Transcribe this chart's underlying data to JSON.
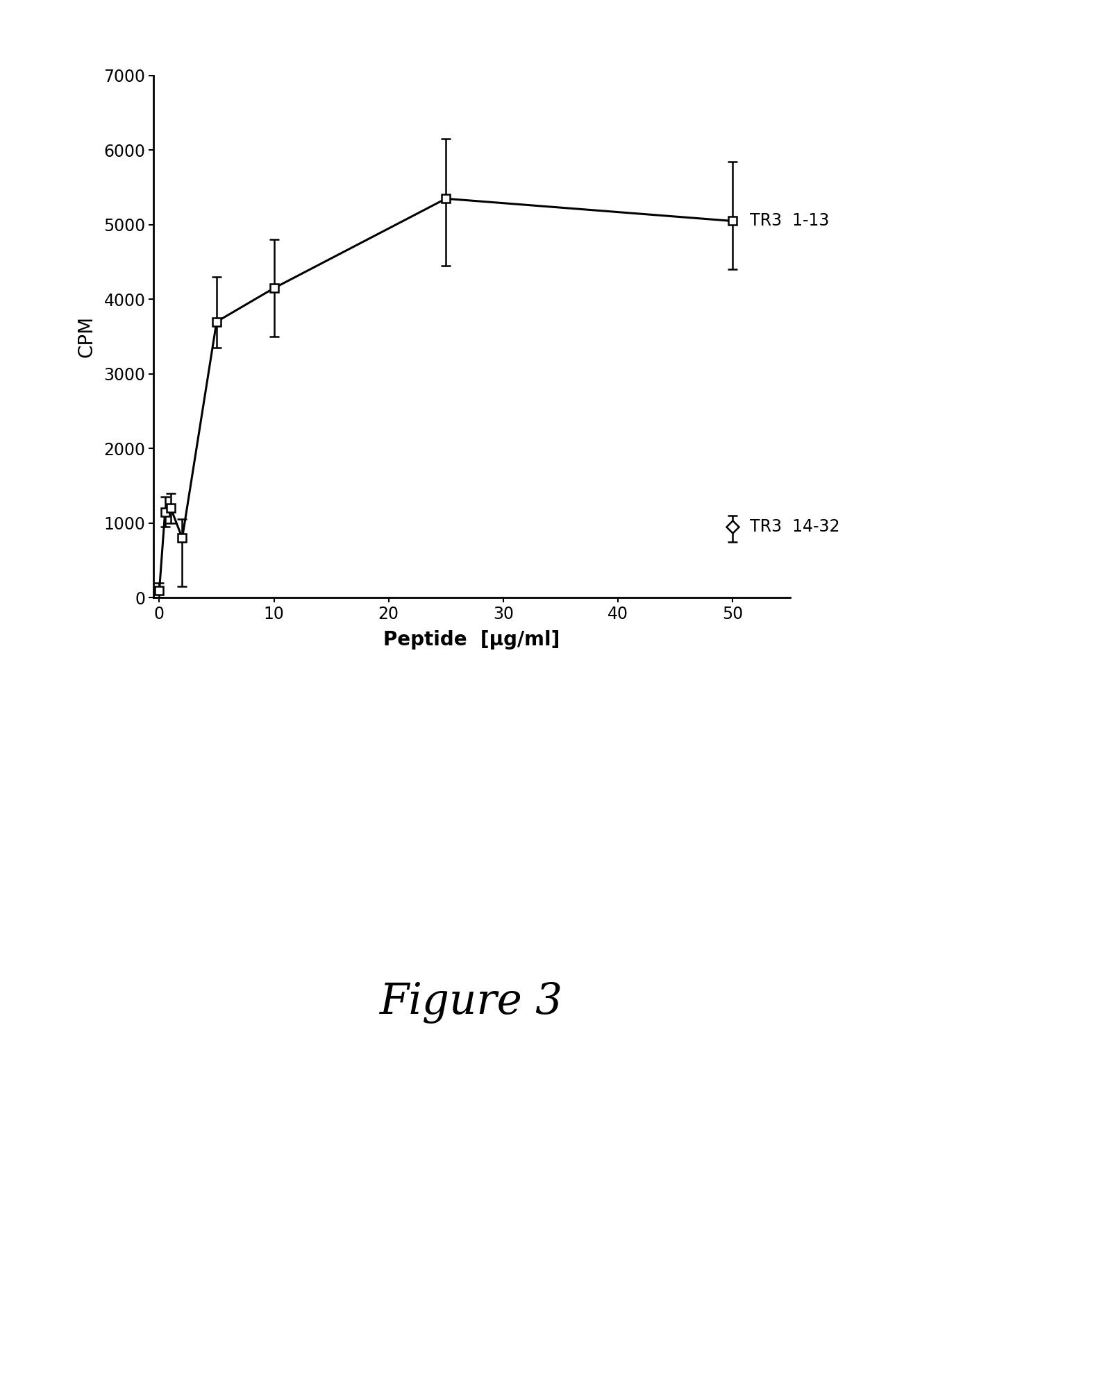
{
  "tr3_1_13_x": [
    0,
    0.5,
    1,
    2,
    5,
    10,
    25,
    50
  ],
  "tr3_1_13_y": [
    100,
    1150,
    1200,
    800,
    3700,
    4150,
    5350,
    5050
  ],
  "tr3_1_13_yerr_low": [
    100,
    200,
    200,
    650,
    350,
    650,
    900,
    650
  ],
  "tr3_1_13_yerr_high": [
    100,
    200,
    200,
    250,
    600,
    650,
    800,
    800
  ],
  "tr3_14_32_x": [
    50
  ],
  "tr3_14_32_y": [
    950
  ],
  "tr3_14_32_yerr_low": [
    200
  ],
  "tr3_14_32_yerr_high": [
    150
  ],
  "ylabel": "CPM",
  "xlabel": "Peptide  [μg/ml]",
  "ylim": [
    0,
    7000
  ],
  "xlim": [
    -0.5,
    55
  ],
  "yticks": [
    0,
    1000,
    2000,
    3000,
    4000,
    5000,
    6000,
    7000
  ],
  "xticks": [
    0,
    10,
    20,
    30,
    40,
    50
  ],
  "label_tr3_1_13": "TR3  1-13",
  "label_tr3_14_32": "TR3  14-32",
  "figure_label": "Figure 3",
  "line_color": "#000000",
  "background_color": "#ffffff"
}
